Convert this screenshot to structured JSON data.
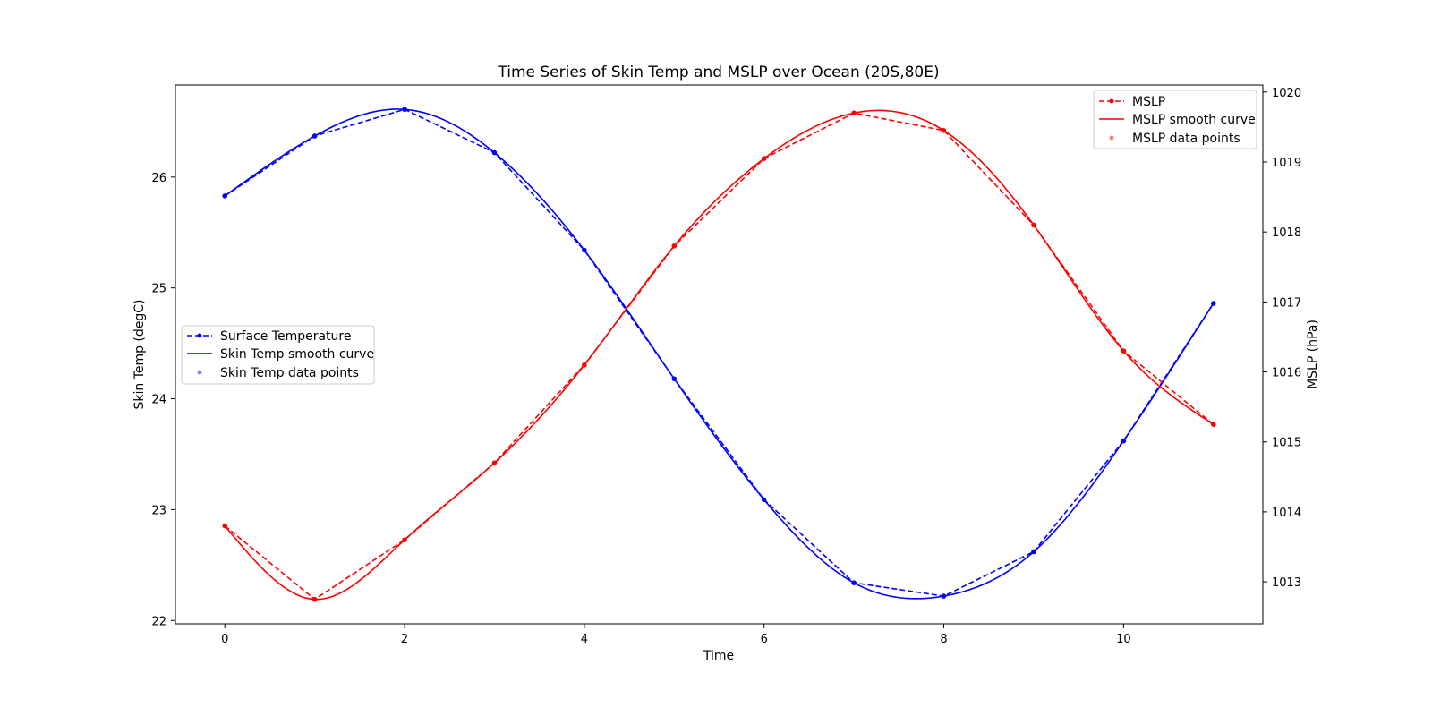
{
  "chart_data": {
    "type": "line",
    "title": "Time Series of Skin Temp and MSLP over Ocean (20S,80E)",
    "xlabel": "Time",
    "ylabel_left": "Skin Temp (degC)",
    "ylabel_right": "MSLP (hPa)",
    "xlim": [
      -0.55,
      11.55
    ],
    "ylim_left": [
      21.97,
      26.83
    ],
    "ylim_right": [
      1012.4,
      1020.1
    ],
    "xticks": [
      0,
      2,
      4,
      6,
      8,
      10
    ],
    "yticks_left": [
      22,
      23,
      24,
      25,
      26
    ],
    "yticks_right": [
      1013,
      1014,
      1015,
      1016,
      1017,
      1018,
      1019,
      1020
    ],
    "x": [
      0,
      1,
      2,
      3,
      4,
      5,
      6,
      7,
      8,
      9,
      10,
      11
    ],
    "grid": false,
    "series": [
      {
        "name": "Surface Temperature",
        "axis": "left",
        "style": "dashed-markers",
        "color": "#0000ff",
        "values": [
          25.83,
          26.37,
          26.61,
          26.22,
          25.34,
          24.18,
          23.09,
          22.34,
          22.22,
          22.62,
          23.62,
          24.86
        ]
      },
      {
        "name": "MSLP",
        "axis": "right",
        "style": "dashed-markers",
        "color": "#ff0000",
        "values": [
          1013.8,
          1012.75,
          1013.6,
          1014.7,
          1016.1,
          1017.8,
          1019.05,
          1019.7,
          1019.45,
          1018.1,
          1016.3,
          1015.25
        ]
      }
    ],
    "legend_left": {
      "placement": "center-left",
      "entries": [
        "Surface Temperature",
        "Skin Temp smooth curve",
        "Skin Temp data points"
      ]
    },
    "legend_right": {
      "placement": "top-right",
      "entries": [
        "MSLP",
        "MSLP smooth curve",
        "MSLP data points"
      ]
    }
  }
}
